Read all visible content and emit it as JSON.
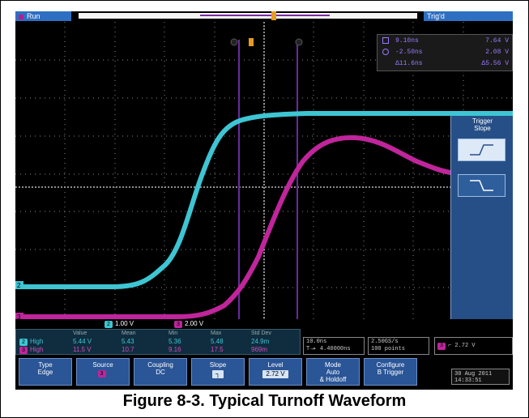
{
  "status": {
    "run": "Run",
    "trigd": "Trig'd"
  },
  "cursor_readout": {
    "row1": {
      "left": "9.10ns",
      "right": "7.64 V"
    },
    "row2": {
      "left": "-2.50ns",
      "right": "2.08 V"
    },
    "row3": {
      "left": "Δ11.6ns",
      "right": "Δ5.56 V"
    }
  },
  "side_menu": {
    "title_line1": "Trigger",
    "title_line2": "Slope"
  },
  "scale_bar": {
    "ch2_num": "2",
    "ch2_scale": "1.00 V",
    "ch3_num": "3",
    "ch3_scale": "2.00 V"
  },
  "measurements": {
    "headers": [
      "Value",
      "Mean",
      "Min",
      "Max",
      "Std Dev"
    ],
    "rows": [
      {
        "ch": "2",
        "name": "High",
        "value": "5.44 V",
        "mean": "5.43",
        "min": "5.36",
        "max": "5.48",
        "std": "24.9m"
      },
      {
        "ch": "3",
        "name": "High",
        "value": "11.5 V",
        "mean": "10.7",
        "min": "9.16",
        "max": "17.5",
        "std": "969m"
      }
    ]
  },
  "timebase": {
    "line1": "10.0ns",
    "line2": "T→▸ 4.40000ns"
  },
  "acquisition": {
    "line1": "2.50GS/s",
    "line2": "100 points"
  },
  "trigger_info": {
    "ch": "3",
    "level": "2.72 V"
  },
  "menu": {
    "type": {
      "label": "Type",
      "value": "Edge"
    },
    "source": {
      "label": "Source",
      "value": "3"
    },
    "coupling": {
      "label": "Coupling",
      "value": "DC"
    },
    "slope": {
      "label": "Slope",
      "value": "┐"
    },
    "level": {
      "label": "Level",
      "value": "2.72 V"
    },
    "mode": {
      "label": "Mode",
      "value1": "Auto",
      "value2": "& Holdoff"
    },
    "configure": {
      "label": "Configure",
      "value": "B Trigger"
    }
  },
  "datetime": {
    "date": "30 Aug 2011",
    "time": "14:33:51"
  },
  "caption": "Figure 8-3. Typical Turnoff Waveform",
  "colors": {
    "ch2": "#3ec5d3",
    "ch3": "#c0259c",
    "cursor": "#6a2aa0",
    "grid": "#8a8a8a",
    "menu": "#2a5596"
  },
  "icons": [
    "record-window-icon",
    "trigger-position-icon",
    "rising-slope-icon",
    "falling-slope-icon"
  ]
}
